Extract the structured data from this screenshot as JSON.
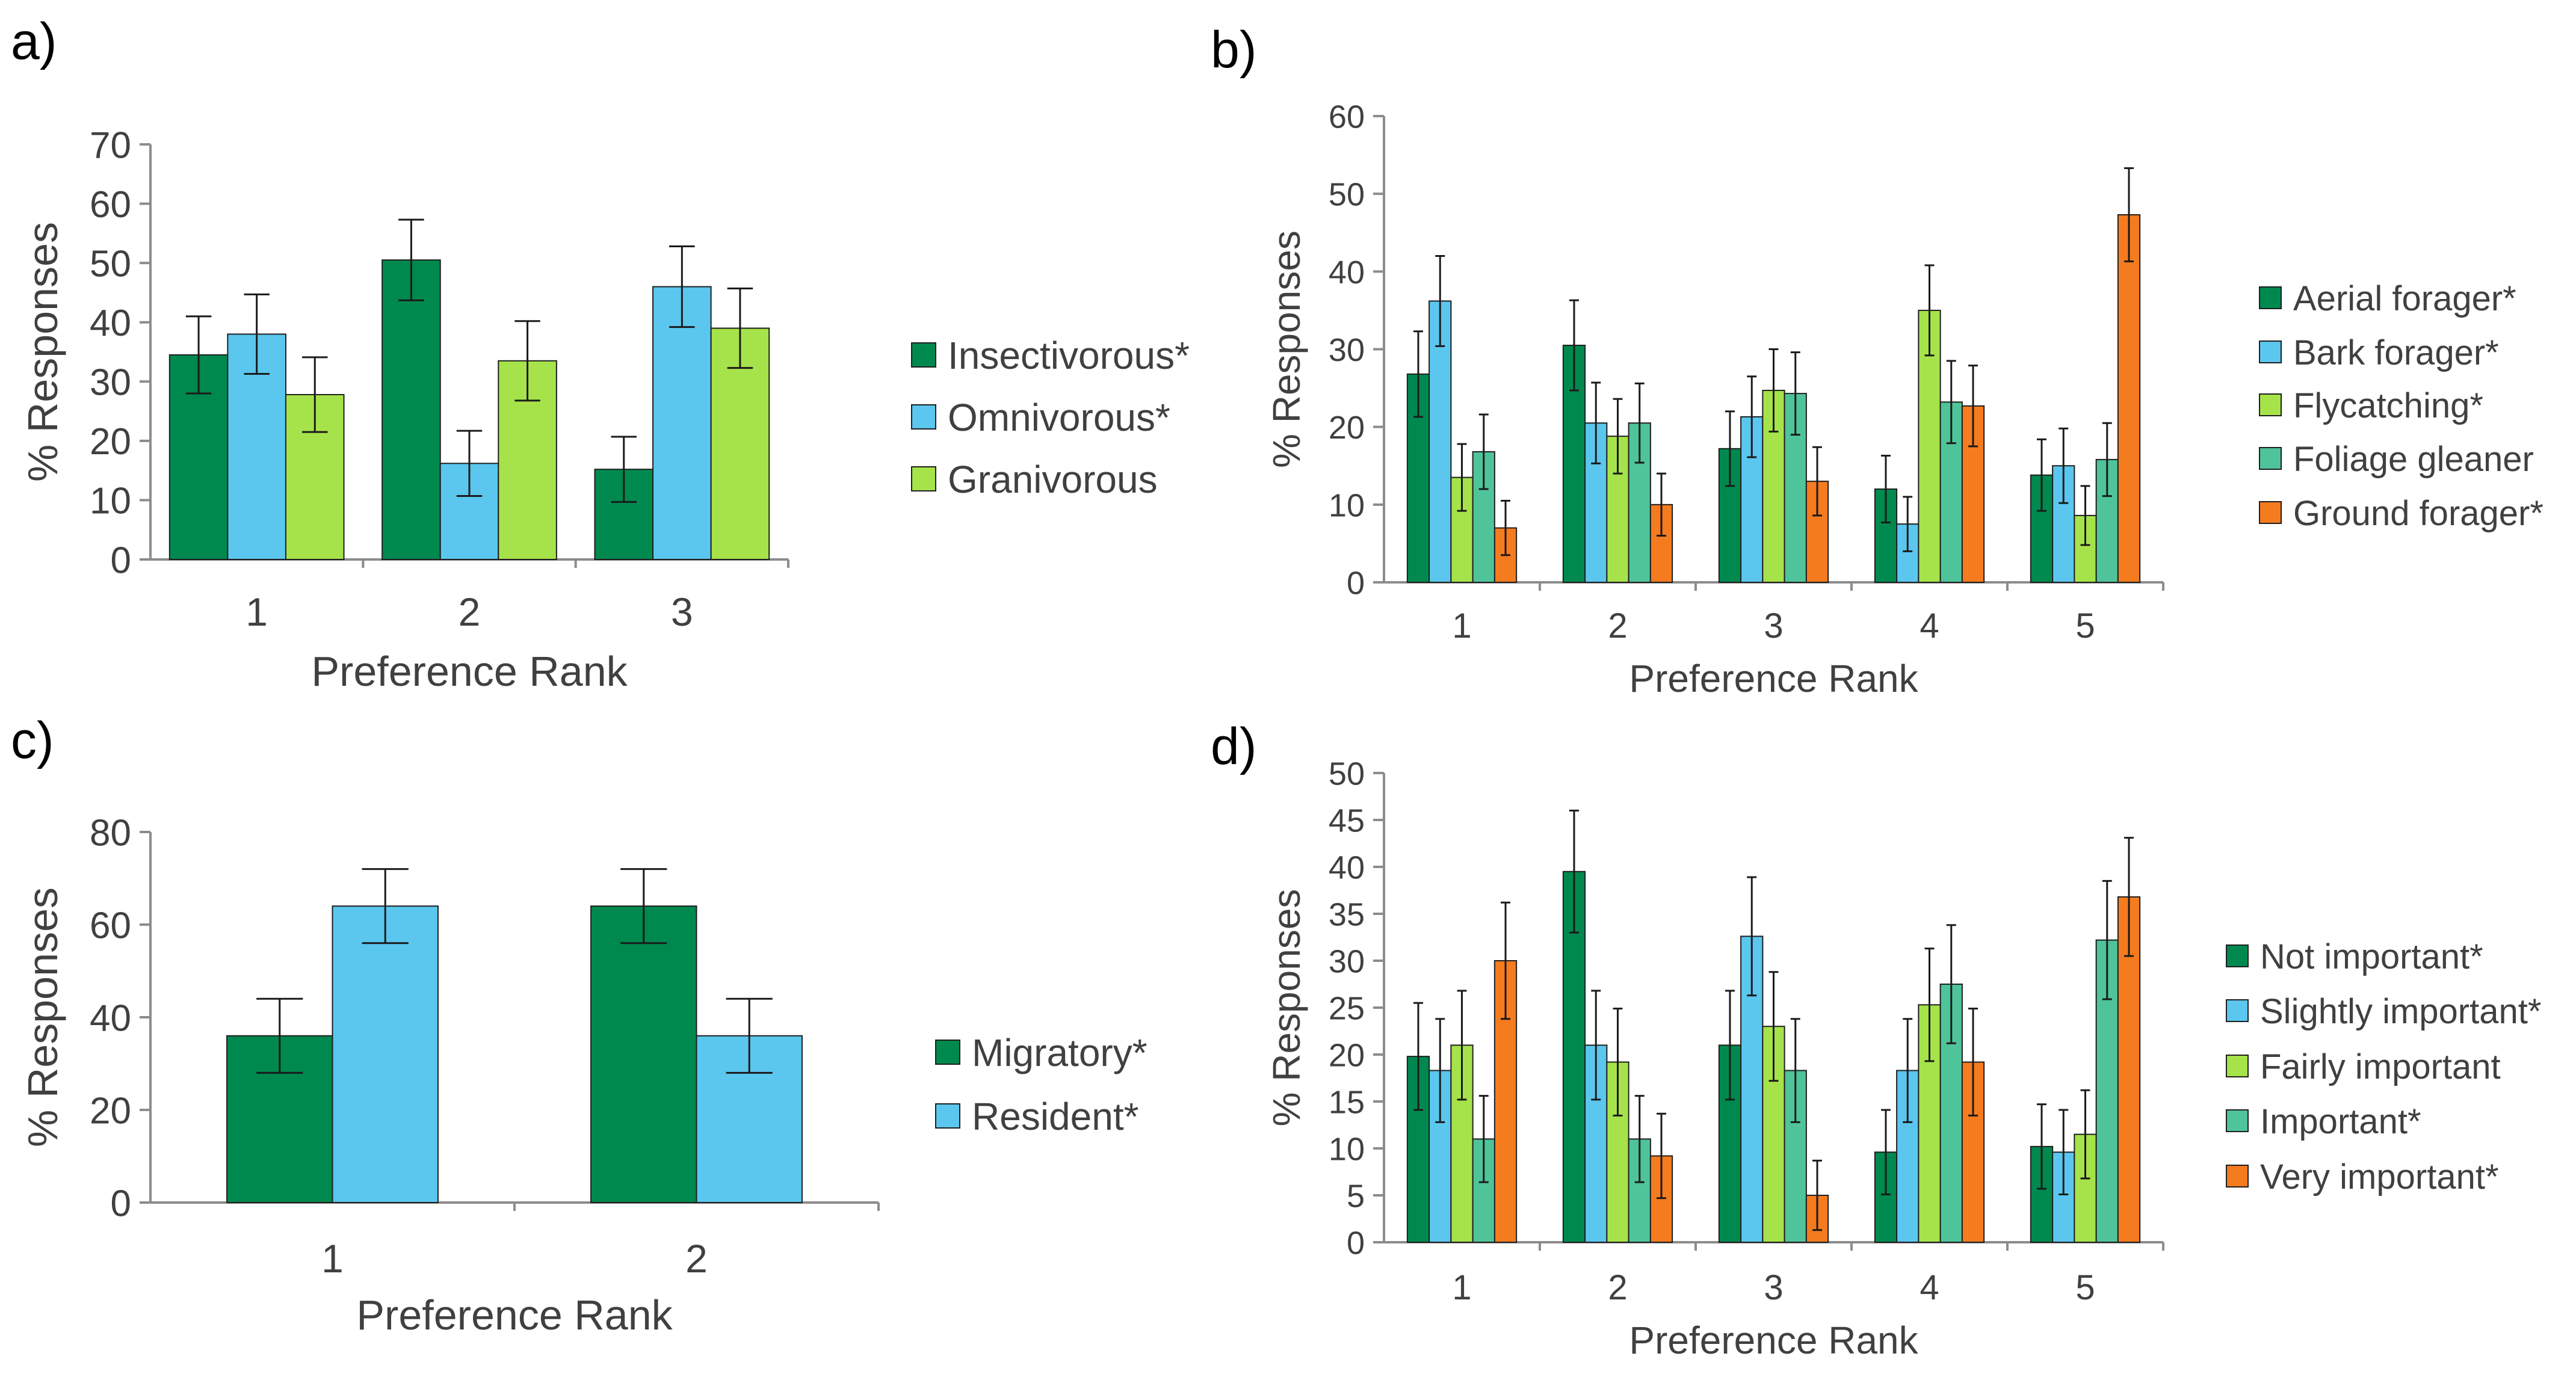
{
  "colors": {
    "dark_green": "#00894f",
    "light_blue": "#5bc7ef",
    "light_green": "#a6e34a",
    "teal": "#4fc49a",
    "orange": "#f57b1f"
  },
  "chart_data": [
    {
      "panel": "a)",
      "type": "bar",
      "xlabel": "Preference Rank",
      "ylabel": "% Responses",
      "ylim": [
        0,
        70
      ],
      "yticks": [
        "0",
        "10",
        "20",
        "30",
        "40",
        "50",
        "60",
        "70"
      ],
      "categories": [
        "1",
        "2",
        "3"
      ],
      "legend_position": "right",
      "series": [
        {
          "name": "Insectivorous*",
          "color": "#00894f",
          "values": [
            34.5,
            50.5,
            15.2
          ],
          "errors": [
            6.5,
            6.8,
            5.5
          ]
        },
        {
          "name": "Omnivorous*",
          "color": "#5bc7ef",
          "values": [
            38.0,
            16.2,
            46.0
          ],
          "errors": [
            6.7,
            5.5,
            6.8
          ]
        },
        {
          "name": "Granivorous",
          "color": "#a6e34a",
          "values": [
            27.8,
            33.5,
            39.0
          ],
          "errors": [
            6.3,
            6.7,
            6.7
          ]
        }
      ]
    },
    {
      "panel": "b)",
      "type": "bar",
      "xlabel": "Preference Rank",
      "ylabel": "% Responses",
      "ylim": [
        0,
        60
      ],
      "yticks": [
        "0",
        "10",
        "20",
        "30",
        "40",
        "50",
        "60"
      ],
      "categories": [
        "1",
        "2",
        "3",
        "4",
        "5"
      ],
      "legend_position": "right",
      "series": [
        {
          "name": "Aerial forager*",
          "color": "#00894f",
          "values": [
            26.8,
            30.5,
            17.2,
            12.0,
            13.8
          ],
          "errors": [
            5.5,
            5.8,
            4.8,
            4.3,
            4.6
          ]
        },
        {
          "name": "Bark forager*",
          "color": "#5bc7ef",
          "values": [
            36.2,
            20.5,
            21.3,
            7.5,
            15.0
          ],
          "errors": [
            5.8,
            5.2,
            5.2,
            3.5,
            4.8
          ]
        },
        {
          "name": "Flycatching*",
          "color": "#a6e34a",
          "values": [
            13.5,
            18.8,
            24.7,
            35.0,
            8.6
          ],
          "errors": [
            4.3,
            4.8,
            5.3,
            5.8,
            3.8
          ]
        },
        {
          "name": "Foliage gleaner",
          "color": "#4fc49a",
          "values": [
            16.8,
            20.5,
            24.3,
            23.2,
            15.8
          ],
          "errors": [
            4.8,
            5.1,
            5.3,
            5.3,
            4.7
          ]
        },
        {
          "name": "Ground forager*",
          "color": "#f57b1f",
          "values": [
            7.0,
            10.0,
            13.0,
            22.7,
            47.3
          ],
          "errors": [
            3.5,
            4.0,
            4.4,
            5.2,
            6.0
          ]
        }
      ]
    },
    {
      "panel": "c)",
      "type": "bar",
      "xlabel": "Preference Rank",
      "ylabel": "% Responses",
      "ylim": [
        0,
        80
      ],
      "yticks": [
        "0",
        "20",
        "40",
        "60",
        "80"
      ],
      "categories": [
        "1",
        "2"
      ],
      "legend_position": "right",
      "series": [
        {
          "name": "Migratory*",
          "color": "#00894f",
          "values": [
            36.0,
            64.0
          ],
          "errors": [
            8.0,
            8.0
          ]
        },
        {
          "name": "Resident*",
          "color": "#5bc7ef",
          "values": [
            64.0,
            36.0
          ],
          "errors": [
            8.0,
            8.0
          ]
        }
      ]
    },
    {
      "panel": "d)",
      "type": "bar",
      "xlabel": "Preference Rank",
      "ylabel": "% Responses",
      "ylim": [
        0,
        50
      ],
      "yticks": [
        "0",
        "5",
        "10",
        "15",
        "20",
        "25",
        "30",
        "35",
        "40",
        "45",
        "50"
      ],
      "categories": [
        "1",
        "2",
        "3",
        "4",
        "5"
      ],
      "legend_position": "right",
      "series": [
        {
          "name": "Not important*",
          "color": "#00894f",
          "values": [
            19.8,
            39.5,
            21.0,
            9.6,
            10.2
          ],
          "errors": [
            5.7,
            6.5,
            5.8,
            4.5,
            4.5
          ]
        },
        {
          "name": "Slightly important*",
          "color": "#5bc7ef",
          "values": [
            18.3,
            21.0,
            32.6,
            18.3,
            9.6
          ],
          "errors": [
            5.5,
            5.8,
            6.3,
            5.5,
            4.5
          ]
        },
        {
          "name": "Fairly important",
          "color": "#a6e34a",
          "values": [
            21.0,
            19.2,
            23.0,
            25.3,
            11.5
          ],
          "errors": [
            5.8,
            5.7,
            5.8,
            6.0,
            4.7
          ]
        },
        {
          "name": "Important*",
          "color": "#4fc49a",
          "values": [
            11.0,
            11.0,
            18.3,
            27.5,
            32.2
          ],
          "errors": [
            4.6,
            4.6,
            5.5,
            6.3,
            6.3
          ]
        },
        {
          "name": "Very important*",
          "color": "#f57b1f",
          "values": [
            30.0,
            9.2,
            5.0,
            19.2,
            36.8
          ],
          "errors": [
            6.2,
            4.5,
            3.7,
            5.7,
            6.3
          ]
        }
      ]
    }
  ]
}
